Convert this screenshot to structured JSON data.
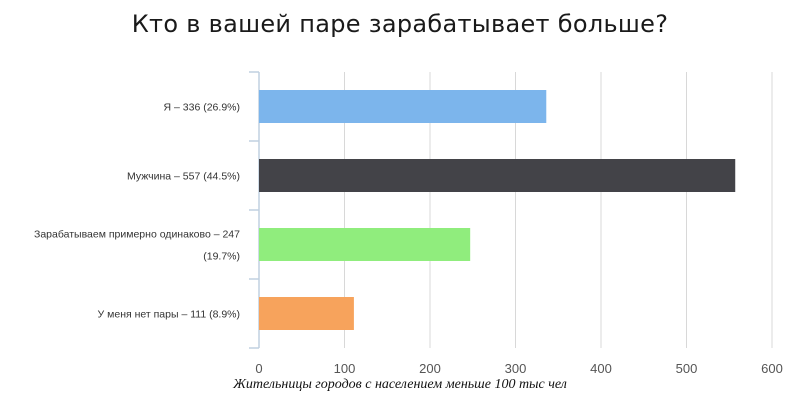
{
  "chart_data": {
    "type": "bar",
    "orientation": "horizontal",
    "title": "Кто в вашей паре зарабатывает больше?",
    "caption": "Жительницы городов с населением меньше 100 тыс чел",
    "categories": [
      [
        "Я – 336 (26.9%)"
      ],
      [
        "Мужчина – 557 (44.5%)"
      ],
      [
        "Зарабатываем примерно одинаково – 247",
        "(19.7%)"
      ],
      [
        "У меня нет пары – 111 (8.9%)"
      ]
    ],
    "values": [
      336,
      557,
      247,
      111
    ],
    "colors": [
      "#7cb5ec",
      "#434348",
      "#90ed7d",
      "#f7a35c"
    ],
    "xlim": [
      0,
      600
    ],
    "xticks": [
      0,
      100,
      200,
      300,
      400,
      500,
      600
    ],
    "grid": true,
    "legend": "none"
  }
}
